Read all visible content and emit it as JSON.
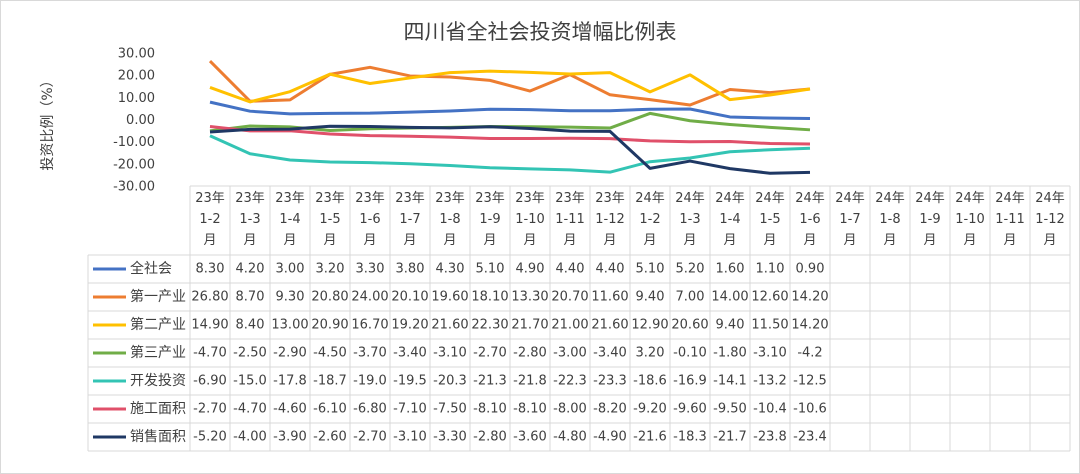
{
  "chart_data": {
    "type": "line",
    "title": "四川省全社会投资增幅比例表",
    "ylabel": "投资比例（%）",
    "categories": [
      "23年1-2月",
      "23年1-3月",
      "23年1-4月",
      "23年1-5月",
      "23年1-6月",
      "23年1-7月",
      "23年1-8月",
      "23年1-9月",
      "23年1-10月",
      "23年1-11月",
      "23年1-12月",
      "24年1-2月",
      "24年1-3月",
      "24年1-4月",
      "24年1-5月",
      "24年1-6月",
      "24年1-7月",
      "24年1-8月",
      "24年1-9月",
      "24年1-10月",
      "24年1-11月",
      "24年1-12月"
    ],
    "ylim": [
      -30,
      30
    ],
    "yticks": [
      {
        "value": 30,
        "label": "30.00"
      },
      {
        "value": 20,
        "label": "20.00"
      },
      {
        "value": 10,
        "label": "10.00"
      },
      {
        "value": 0,
        "label": "0.00"
      },
      {
        "value": -10,
        "label": "-10.00"
      },
      {
        "value": -20,
        "label": "-20.00"
      },
      {
        "value": -30,
        "label": "-30.00"
      }
    ],
    "series": [
      {
        "name": "全社会",
        "color": "#4472c4",
        "values": [
          8.3,
          4.2,
          3,
          3.2,
          3.3,
          3.8,
          4.3,
          5.1,
          4.9,
          4.4,
          4.4,
          5.1,
          5.2,
          1.6,
          1.1,
          0.9,
          null,
          null,
          null,
          null,
          null,
          null
        ],
        "value_labels": [
          "8.30",
          "4.20",
          "3.00",
          "3.20",
          "3.30",
          "3.80",
          "4.30",
          "5.10",
          "4.90",
          "4.40",
          "4.40",
          "5.10",
          "5.20",
          "1.60",
          "1.10",
          "0.90",
          null,
          null,
          null,
          null,
          null,
          null
        ]
      },
      {
        "name": "第一产业",
        "color": "#ed7d31",
        "values": [
          26.8,
          8.7,
          9.3,
          20.8,
          24,
          20.1,
          19.6,
          18.1,
          13.3,
          20.7,
          11.6,
          9.4,
          7,
          14,
          12.6,
          14.2,
          null,
          null,
          null,
          null,
          null,
          null
        ],
        "value_labels": [
          "26.80",
          "8.70",
          "9.30",
          "20.80",
          "24.00",
          "20.10",
          "19.60",
          "18.10",
          "13.30",
          "20.70",
          "11.60",
          "9.40",
          "7.00",
          "14.00",
          "12.60",
          "14.20",
          null,
          null,
          null,
          null,
          null,
          null
        ]
      },
      {
        "name": "第二产业",
        "color": "#ffc000",
        "values": [
          14.9,
          8.4,
          13,
          20.9,
          16.7,
          19.2,
          21.6,
          22.3,
          21.7,
          21,
          21.6,
          12.9,
          20.6,
          9.4,
          11.5,
          14.2,
          null,
          null,
          null,
          null,
          null,
          null
        ],
        "value_labels": [
          "14.90",
          "8.40",
          "13.00",
          "20.90",
          "16.70",
          "19.20",
          "21.60",
          "22.30",
          "21.70",
          "21.00",
          "21.60",
          "12.90",
          "20.60",
          "9.40",
          "11.50",
          "14.20",
          null,
          null,
          null,
          null,
          null,
          null
        ]
      },
      {
        "name": "第三产业",
        "color": "#70ad47",
        "values": [
          -4.7,
          -2.5,
          -2.9,
          -4.5,
          -3.7,
          -3.4,
          -3.1,
          -2.7,
          -2.8,
          -3,
          -3.4,
          3.2,
          -0.1,
          -1.8,
          -3.1,
          -4.2,
          null,
          null,
          null,
          null,
          null,
          null
        ],
        "value_labels": [
          "-4.70",
          "-2.50",
          "-2.90",
          "-4.50",
          "-3.70",
          "-3.40",
          "-3.10",
          "-2.70",
          "-2.80",
          "-3.00",
          "-3.40",
          "3.20",
          "-0.10",
          "-1.80",
          "-3.10",
          "-4.2",
          null,
          null,
          null,
          null,
          null,
          null
        ]
      },
      {
        "name": "开发投资",
        "color": "#33c4b4",
        "values": [
          -6.9,
          -15,
          -17.8,
          -18.7,
          -19,
          -19.5,
          -20.3,
          -21.3,
          -21.8,
          -22.3,
          -23.3,
          -18.6,
          -16.9,
          -14.1,
          -13.2,
          -12.5,
          null,
          null,
          null,
          null,
          null,
          null
        ],
        "value_labels": [
          "-6.90",
          "-15.0",
          "-17.8",
          "-18.7",
          "-19.0",
          "-19.5",
          "-20.3",
          "-21.3",
          "-21.8",
          "-22.3",
          "-23.3",
          "-18.6",
          "-16.9",
          "-14.1",
          "-13.2",
          "-12.5",
          null,
          null,
          null,
          null,
          null,
          null
        ]
      },
      {
        "name": "施工面积",
        "color": "#e0506a",
        "values": [
          -2.7,
          -4.7,
          -4.6,
          -6.1,
          -6.8,
          -7.1,
          -7.5,
          -8.1,
          -8.1,
          -8,
          -8.2,
          -9.2,
          -9.6,
          -9.5,
          -10.4,
          -10.6,
          null,
          null,
          null,
          null,
          null,
          null
        ],
        "value_labels": [
          "-2.70",
          "-4.70",
          "-4.60",
          "-6.10",
          "-6.80",
          "-7.10",
          "-7.50",
          "-8.10",
          "-8.10",
          "-8.00",
          "-8.20",
          "-9.20",
          "-9.60",
          "-9.50",
          "-10.4",
          "-10.6",
          null,
          null,
          null,
          null,
          null,
          null
        ]
      },
      {
        "name": "销售面积",
        "color": "#1f3864",
        "values": [
          -5.2,
          -4,
          -3.9,
          -2.6,
          -2.7,
          -3.1,
          -3.3,
          -2.8,
          -3.6,
          -4.8,
          -4.9,
          -21.6,
          -18.3,
          -21.7,
          -23.8,
          -23.4,
          null,
          null,
          null,
          null,
          null,
          null
        ],
        "value_labels": [
          "-5.20",
          "-4.00",
          "-3.90",
          "-2.60",
          "-2.70",
          "-3.10",
          "-3.30",
          "-2.80",
          "-3.60",
          "-4.80",
          "-4.90",
          "-21.6",
          "-18.3",
          "-21.7",
          "-23.8",
          "-23.4",
          null,
          null,
          null,
          null,
          null,
          null
        ]
      }
    ]
  }
}
